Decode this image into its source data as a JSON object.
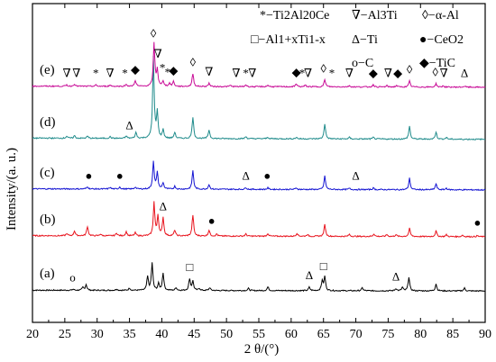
{
  "chart_data": {
    "type": "line",
    "xlabel": "2 θ/(°)",
    "ylabel": "Intensity/(a. u.)",
    "xlim": [
      20,
      90
    ],
    "x_ticks": [
      "20",
      "25",
      "30",
      "35",
      "40",
      "45",
      "50",
      "55",
      "60",
      "65",
      "70",
      "75",
      "80",
      "85",
      "90"
    ],
    "x_tick_values": [
      20,
      25,
      30,
      35,
      40,
      45,
      50,
      55,
      60,
      65,
      70,
      75,
      80,
      85,
      90
    ],
    "y_tick_labels": false,
    "grid": false,
    "legend_position": "top",
    "legend": [
      {
        "symbol": "*",
        "label": "−Ti2Al20Ce"
      },
      {
        "symbol": "∇",
        "label": "−Al3Ti"
      },
      {
        "symbol": "◊",
        "label": "−α-Al"
      },
      {
        "symbol": "□",
        "label": "−Al1+xTi1-x"
      },
      {
        "symbol": "Δ",
        "label": "−Ti"
      },
      {
        "symbol": "●",
        "label": "−CeO2"
      },
      {
        "symbol": "o",
        "label": "−C"
      },
      {
        "symbol": "◆",
        "label": "−TiC"
      }
    ],
    "series": [
      {
        "name": "(a)",
        "color": "#000000",
        "baseline": 0.6,
        "peaks": [
          [
            26.3,
            0.4
          ],
          [
            27.8,
            1.1
          ],
          [
            28.3,
            2.2
          ],
          [
            33,
            0.5
          ],
          [
            35,
            0.9
          ],
          [
            37.8,
            5.2
          ],
          [
            38.5,
            10.5
          ],
          [
            39.5,
            2.5
          ],
          [
            40.2,
            6.6
          ],
          [
            42.2,
            1.1
          ],
          [
            44.3,
            4.5
          ],
          [
            44.8,
            3.5
          ],
          [
            45.8,
            0.8
          ],
          [
            47.4,
            1.1
          ],
          [
            53.4,
            0.8
          ],
          [
            56.4,
            1.4
          ],
          [
            62.8,
            1.3
          ],
          [
            64.8,
            3.8
          ],
          [
            65.2,
            5.3
          ],
          [
            71,
            1.1
          ],
          [
            76.2,
            0.9
          ],
          [
            77.2,
            1.3
          ],
          [
            78.2,
            5.3
          ],
          [
            82.4,
            2.7
          ],
          [
            86.8,
            1.1
          ]
        ],
        "markers": [
          {
            "symbol": "o",
            "x": 26.2
          },
          {
            "symbol": "□",
            "x": 44.3
          },
          {
            "symbol": "Δ",
            "x": 62.8
          },
          {
            "symbol": "□",
            "x": 65
          },
          {
            "symbol": "Δ",
            "x": 76.2
          }
        ]
      },
      {
        "name": "(b)",
        "color": "#e8141e",
        "baseline": 0.8,
        "peaks": [
          [
            25.3,
            0.8
          ],
          [
            26.5,
            1.9
          ],
          [
            28.5,
            3.6
          ],
          [
            30.5,
            0.7
          ],
          [
            33,
            1.1
          ],
          [
            34.5,
            1.6
          ],
          [
            35.9,
            1.2
          ],
          [
            38.8,
            12.8
          ],
          [
            39.4,
            7.7
          ],
          [
            40.2,
            7
          ],
          [
            42,
            2.2
          ],
          [
            44.8,
            8.1
          ],
          [
            47.3,
            2.3
          ],
          [
            48.5,
            0.8
          ],
          [
            53,
            0.8
          ],
          [
            56.4,
            1
          ],
          [
            60.9,
            1.2
          ],
          [
            62.5,
            0.7
          ],
          [
            65.2,
            4.5
          ],
          [
            69,
            0.8
          ],
          [
            72.8,
            1
          ],
          [
            74.8,
            0.8
          ],
          [
            76.2,
            0.7
          ],
          [
            78.3,
            3.1
          ],
          [
            82.4,
            2.2
          ],
          [
            84,
            0.7
          ],
          [
            86.5,
            0.6
          ],
          [
            88.8,
            0.4
          ]
        ],
        "markers": [
          {
            "symbol": "Δ",
            "x": 40.2
          },
          {
            "symbol": "●",
            "x": 47.7
          },
          {
            "symbol": "●",
            "x": 88.8
          }
        ]
      },
      {
        "name": "(c)",
        "color": "#1414d2",
        "baseline": 0.8,
        "peaks": [
          [
            28.5,
            0.9
          ],
          [
            32,
            0.6
          ],
          [
            33.5,
            0.8
          ],
          [
            35.9,
            0.8
          ],
          [
            38.7,
            10.6
          ],
          [
            39.3,
            6.4
          ],
          [
            40.2,
            2.4
          ],
          [
            42,
            1.1
          ],
          [
            44.8,
            7.1
          ],
          [
            47.3,
            1.8
          ],
          [
            53,
            0.7
          ],
          [
            56.4,
            0.6
          ],
          [
            60.8,
            0.6
          ],
          [
            65.2,
            5.1
          ],
          [
            69,
            0.5
          ],
          [
            72.7,
            0.6
          ],
          [
            78.3,
            4.4
          ],
          [
            82.4,
            2.3
          ],
          [
            84,
            0.6
          ]
        ],
        "markers": [
          {
            "symbol": "●",
            "x": 28.7
          },
          {
            "symbol": "●",
            "x": 33.5
          },
          {
            "symbol": "Δ",
            "x": 53
          },
          {
            "symbol": "●",
            "x": 56.3
          },
          {
            "symbol": "Δ",
            "x": 70
          }
        ]
      },
      {
        "name": "(d)",
        "color": "#1f8b8b",
        "baseline": 0.9,
        "peaks": [
          [
            25.3,
            0.8
          ],
          [
            26.5,
            1
          ],
          [
            28.5,
            0.8
          ],
          [
            32,
            0.6
          ],
          [
            34.5,
            0.9
          ],
          [
            36,
            2.2
          ],
          [
            38.7,
            31
          ],
          [
            39.3,
            9.8
          ],
          [
            40.2,
            3.2
          ],
          [
            42,
            2.4
          ],
          [
            44.8,
            8.3
          ],
          [
            47.3,
            3.4
          ],
          [
            53,
            0.8
          ],
          [
            56.4,
            0.6
          ],
          [
            60.8,
            0.6
          ],
          [
            65.2,
            5.8
          ],
          [
            69,
            0.6
          ],
          [
            72.7,
            0.6
          ],
          [
            78.3,
            5
          ],
          [
            82.4,
            2.8
          ],
          [
            84,
            0.7
          ]
        ],
        "markers": [
          {
            "symbol": "Δ",
            "x": 35
          }
        ]
      },
      {
        "name": "(e)",
        "color": "#c80a96",
        "baseline": 0.8,
        "peaks": [
          [
            25.3,
            0.5
          ],
          [
            26.5,
            0.9
          ],
          [
            29.8,
            0.5
          ],
          [
            32,
            0.5
          ],
          [
            34.5,
            0.8
          ],
          [
            35.9,
            2.3
          ],
          [
            38.8,
            16.5
          ],
          [
            39.3,
            6.3
          ],
          [
            40.2,
            2.1
          ],
          [
            41.2,
            1.2
          ],
          [
            41.8,
            1.9
          ],
          [
            44.8,
            5
          ],
          [
            47.3,
            1.3
          ],
          [
            50.6,
            0.5
          ],
          [
            53,
            0.7
          ],
          [
            56.4,
            0.6
          ],
          [
            60.8,
            1.2
          ],
          [
            62.2,
            0.6
          ],
          [
            65.2,
            2.8
          ],
          [
            69,
            0.5
          ],
          [
            72.7,
            0.9
          ],
          [
            74.8,
            0.5
          ],
          [
            76.3,
            0.6
          ],
          [
            78.3,
            2.3
          ],
          [
            82.4,
            1.3
          ],
          [
            83.5,
            0.5
          ],
          [
            86.8,
            0.4
          ]
        ],
        "markers": [
          {
            "symbol": "∇",
            "x": 25.3
          },
          {
            "symbol": "∇",
            "x": 26.8
          },
          {
            "symbol": "*",
            "x": 29.8
          },
          {
            "symbol": "∇",
            "x": 32
          },
          {
            "symbol": "*",
            "x": 34.3
          },
          {
            "symbol": "◆",
            "x": 35.9
          },
          {
            "symbol": "∇",
            "x": 39.4
          },
          {
            "symbol": "◊",
            "x": 38.7
          },
          {
            "symbol": "*",
            "x": 40.1
          },
          {
            "symbol": "*",
            "x": 40.9
          },
          {
            "symbol": "◆",
            "x": 41.8
          },
          {
            "symbol": "◊",
            "x": 44.8
          },
          {
            "symbol": "∇",
            "x": 47.3
          },
          {
            "symbol": "∇",
            "x": 51.5
          },
          {
            "symbol": "*",
            "x": 53
          },
          {
            "symbol": "∇",
            "x": 54
          },
          {
            "symbol": "◆",
            "x": 60.8
          },
          {
            "symbol": "*",
            "x": 61.7
          },
          {
            "symbol": "∇",
            "x": 62.6
          },
          {
            "symbol": "◊",
            "x": 65
          },
          {
            "symbol": "*",
            "x": 66.3
          },
          {
            "symbol": "∇",
            "x": 69
          },
          {
            "symbol": "◆",
            "x": 72.7
          },
          {
            "symbol": "∇",
            "x": 75
          },
          {
            "symbol": "◆",
            "x": 76.5
          },
          {
            "symbol": "◊",
            "x": 78.3
          },
          {
            "symbol": "◊",
            "x": 82.3
          },
          {
            "symbol": "∇",
            "x": 83.6
          },
          {
            "symbol": "Δ",
            "x": 86.8
          }
        ]
      }
    ]
  }
}
